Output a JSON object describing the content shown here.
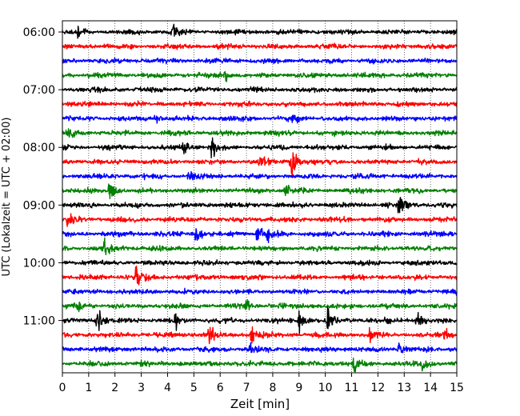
{
  "chart_data": {
    "type": "line",
    "title": "",
    "xlabel": "Zeit  [min]",
    "ylabel": "UTC (Lokalzeit = UTC + 02:00)",
    "xlim": [
      0,
      15
    ],
    "x_ticks": [
      "0",
      "1",
      "2",
      "3",
      "4",
      "5",
      "6",
      "7",
      "8",
      "9",
      "10",
      "11",
      "12",
      "13",
      "14",
      "15"
    ],
    "y_tick_labels": [
      "06:00",
      "07:00",
      "08:00",
      "09:00",
      "10:00",
      "11:00"
    ],
    "grid": "vertical dotted at each minute",
    "trace_interval_minutes": 15,
    "trace_colors": [
      "#000000",
      "#ff0000",
      "#0000ff",
      "#008000"
    ],
    "series": [
      {
        "start": "06:00",
        "events": [
          [
            0.6,
            3
          ],
          [
            4.2,
            4
          ]
        ]
      },
      {
        "start": "06:15",
        "events": []
      },
      {
        "start": "06:30",
        "events": []
      },
      {
        "start": "06:45",
        "events": [
          [
            6.2,
            3
          ]
        ]
      },
      {
        "start": "07:00",
        "events": []
      },
      {
        "start": "07:15",
        "events": []
      },
      {
        "start": "07:30",
        "events": [
          [
            3.5,
            3
          ],
          [
            8.8,
            3
          ]
        ]
      },
      {
        "start": "07:45",
        "events": [
          [
            0.2,
            3
          ]
        ]
      },
      {
        "start": "08:00",
        "events": [
          [
            4.6,
            7
          ],
          [
            5.7,
            6
          ]
        ]
      },
      {
        "start": "08:15",
        "events": [
          [
            7.5,
            6
          ],
          [
            8.7,
            10
          ]
        ]
      },
      {
        "start": "08:30",
        "events": [
          [
            4.8,
            3
          ]
        ]
      },
      {
        "start": "08:45",
        "events": [
          [
            1.8,
            6
          ],
          [
            8.5,
            3
          ]
        ]
      },
      {
        "start": "09:00",
        "events": [
          [
            12.8,
            7
          ]
        ]
      },
      {
        "start": "09:15",
        "events": [
          [
            0.2,
            6
          ]
        ]
      },
      {
        "start": "09:30",
        "events": [
          [
            5.1,
            7
          ],
          [
            7.4,
            6
          ],
          [
            7.8,
            5
          ]
        ]
      },
      {
        "start": "09:45",
        "events": [
          [
            1.6,
            4
          ]
        ]
      },
      {
        "start": "10:00",
        "events": []
      },
      {
        "start": "10:15",
        "events": [
          [
            2.8,
            9
          ]
        ]
      },
      {
        "start": "10:30",
        "events": []
      },
      {
        "start": "10:45",
        "events": [
          [
            0.6,
            3
          ],
          [
            7.0,
            3
          ]
        ]
      },
      {
        "start": "11:00",
        "events": [
          [
            1.3,
            10
          ],
          [
            4.3,
            6
          ],
          [
            9.0,
            9
          ],
          [
            10.1,
            6
          ],
          [
            13.5,
            6
          ]
        ]
      },
      {
        "start": "11:15",
        "events": [
          [
            5.6,
            8
          ],
          [
            7.2,
            6
          ],
          [
            11.7,
            5
          ],
          [
            14.5,
            5
          ]
        ]
      },
      {
        "start": "11:30",
        "events": [
          [
            7.1,
            4
          ],
          [
            12.8,
            4
          ]
        ]
      },
      {
        "start": "11:45",
        "events": [
          [
            11.1,
            6
          ],
          [
            13.7,
            5
          ]
        ]
      }
    ]
  }
}
